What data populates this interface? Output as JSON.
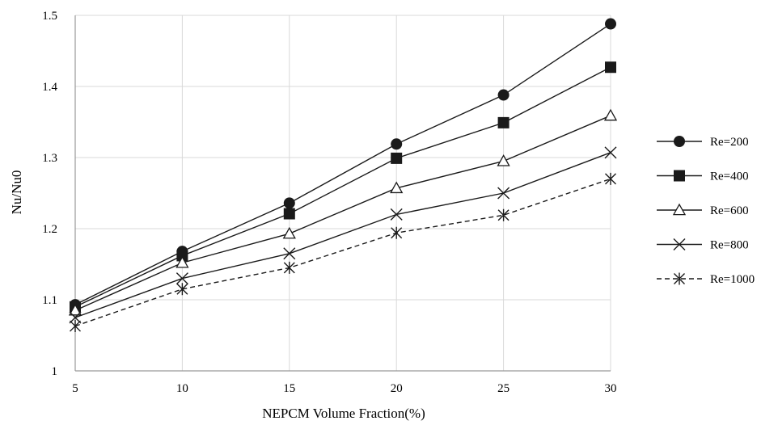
{
  "chart_data": {
    "type": "line",
    "xlabel": "NEPCM Volume Fraction(%)",
    "ylabel": "Nu/Nu0",
    "x": [
      5,
      10,
      15,
      20,
      25,
      30
    ],
    "xticks": [
      "5",
      "10",
      "15",
      "20",
      "25",
      "30"
    ],
    "yticks": [
      "1",
      "1.1",
      "1.2",
      "1.3",
      "1.4",
      "1.5"
    ],
    "xlim": [
      5,
      30
    ],
    "ylim": [
      1,
      1.5
    ],
    "grid": true,
    "legend_position": "right",
    "series": [
      {
        "name": "Re=200",
        "marker": "circle",
        "line_style": "solid",
        "values": [
          1.093,
          1.168,
          1.236,
          1.319,
          1.388,
          1.488
        ]
      },
      {
        "name": "Re=400",
        "marker": "square",
        "line_style": "solid",
        "values": [
          1.09,
          1.162,
          1.221,
          1.299,
          1.349,
          1.427
        ]
      },
      {
        "name": "Re=600",
        "marker": "triangle",
        "line_style": "solid",
        "values": [
          1.085,
          1.152,
          1.193,
          1.257,
          1.295,
          1.359
        ]
      },
      {
        "name": "Re=800",
        "marker": "x",
        "line_style": "solid",
        "values": [
          1.075,
          1.13,
          1.165,
          1.22,
          1.25,
          1.307
        ]
      },
      {
        "name": "Re=1000",
        "marker": "star",
        "line_style": "dashed",
        "values": [
          1.063,
          1.115,
          1.145,
          1.194,
          1.219,
          1.27
        ]
      }
    ],
    "colors": {
      "line": "#1a1a1a",
      "grid": "#d9d9d9",
      "axis": "#999999"
    }
  }
}
